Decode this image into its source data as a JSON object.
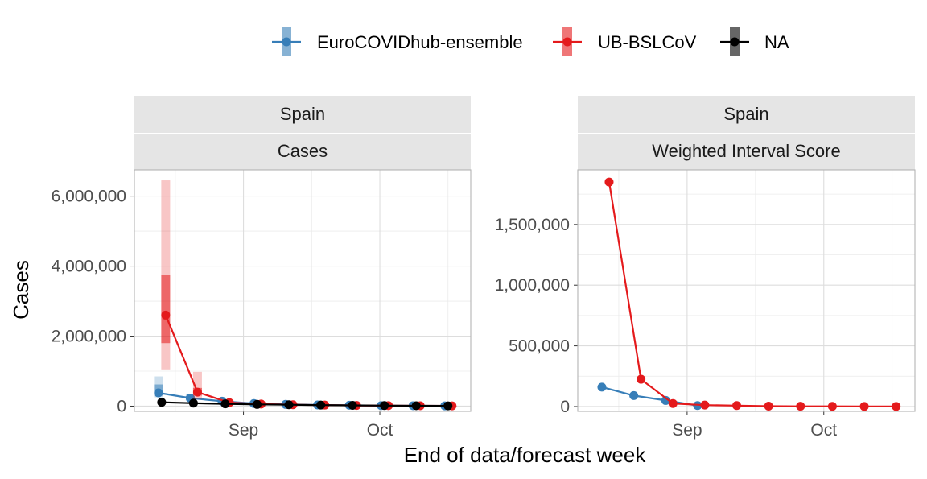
{
  "legend": {
    "items": [
      {
        "label": "EuroCOVIDhub-ensemble",
        "color": "#377EB8"
      },
      {
        "label": "UB-BSLCoV",
        "color": "#E41A1C"
      },
      {
        "label": "NA",
        "color": "#000000"
      }
    ]
  },
  "axes": {
    "xlabel": "End of data/forecast week",
    "ylabel": "Cases"
  },
  "chart_data": [
    {
      "type": "line",
      "strip_top": "Spain",
      "strip_bottom": "Cases",
      "x_tick_labels": [
        "Sep",
        "Oct"
      ],
      "x_ticks": [
        "2021-09-01",
        "2021-10-01"
      ],
      "xlim": [
        "2021-08-08",
        "2021-10-21"
      ],
      "ylim": [
        -150000,
        6750000
      ],
      "y_ticks": [
        0,
        2000000,
        4000000,
        6000000
      ],
      "y_tick_labels": [
        "0",
        "2,000,000",
        "4,000,000",
        "6,000,000"
      ],
      "series": [
        {
          "name": "EuroCOVIDhub-ensemble",
          "color": "#377EB8",
          "x": [
            "2021-08-14",
            "2021-08-21",
            "2021-08-28",
            "2021-09-04",
            "2021-09-11",
            "2021-09-18",
            "2021-09-25",
            "2021-10-02",
            "2021-10-09",
            "2021-10-16"
          ],
          "y": [
            380000,
            230000,
            140000,
            75000,
            50000,
            35000,
            25000,
            15000,
            12000,
            8000
          ],
          "q25": [
            300000,
            180000,
            110000,
            60000,
            40000,
            28000,
            20000,
            12000,
            9000,
            6000
          ],
          "q75": [
            620000,
            290000,
            170000,
            95000,
            62000,
            45000,
            32000,
            20000,
            15000,
            10000
          ],
          "q05": [
            250000,
            150000,
            90000,
            50000,
            33000,
            22000,
            16000,
            10000,
            7000,
            4000
          ],
          "q95": [
            850000,
            350000,
            200000,
            110000,
            72000,
            52000,
            38000,
            24000,
            18000,
            12000
          ]
        },
        {
          "name": "UB-BSLCoV",
          "color": "#E41A1C",
          "x": [
            "2021-08-14",
            "2021-08-21",
            "2021-08-28",
            "2021-09-04",
            "2021-09-11",
            "2021-09-18",
            "2021-09-25",
            "2021-10-02",
            "2021-10-09",
            "2021-10-16"
          ],
          "y": [
            2600000,
            400000,
            100000,
            60000,
            40000,
            30000,
            20000,
            15000,
            10000,
            8000
          ],
          "q25": [
            1800000,
            300000,
            80000,
            50000,
            35000,
            25000,
            17000,
            12000,
            8000,
            6000
          ],
          "q75": [
            3750000,
            520000,
            130000,
            75000,
            50000,
            38000,
            25000,
            18000,
            13000,
            10000
          ],
          "q05": [
            1050000,
            200000,
            60000,
            40000,
            28000,
            20000,
            13000,
            9000,
            6000,
            4000
          ],
          "q95": [
            6450000,
            980000,
            170000,
            95000,
            62000,
            45000,
            32000,
            22000,
            16000,
            12000
          ]
        },
        {
          "name": "NA",
          "color": "#000000",
          "x": [
            "2021-08-14",
            "2021-08-21",
            "2021-08-28",
            "2021-09-04",
            "2021-09-11",
            "2021-09-18",
            "2021-09-25",
            "2021-10-02",
            "2021-10-09",
            "2021-10-16"
          ],
          "y": [
            110000,
            85000,
            65000,
            50000,
            40000,
            30000,
            22000,
            16000,
            12000,
            8000
          ]
        }
      ]
    },
    {
      "type": "line",
      "strip_top": "Spain",
      "strip_bottom": "Weighted Interval Score",
      "x_tick_labels": [
        "Sep",
        "Oct"
      ],
      "x_ticks": [
        "2021-09-01",
        "2021-10-01"
      ],
      "xlim": [
        "2021-08-08",
        "2021-10-21"
      ],
      "ylim": [
        -40000,
        1950000
      ],
      "y_ticks": [
        0,
        500000,
        1000000,
        1500000
      ],
      "y_tick_labels": [
        "0",
        "500,000",
        "1,000,000",
        "1,500,000"
      ],
      "series": [
        {
          "name": "EuroCOVIDhub-ensemble",
          "color": "#377EB8",
          "x": [
            "2021-08-14",
            "2021-08-21",
            "2021-08-28",
            "2021-09-04"
          ],
          "y": [
            160000,
            90000,
            50000,
            8000
          ]
        },
        {
          "name": "UB-BSLCoV",
          "color": "#E41A1C",
          "x": [
            "2021-08-14",
            "2021-08-21",
            "2021-08-28",
            "2021-09-04",
            "2021-09-11",
            "2021-09-18",
            "2021-09-25",
            "2021-10-02",
            "2021-10-09",
            "2021-10-16"
          ],
          "y": [
            1850000,
            225000,
            25000,
            12000,
            8000,
            3000,
            2000,
            1500,
            1000,
            800
          ]
        }
      ]
    }
  ]
}
